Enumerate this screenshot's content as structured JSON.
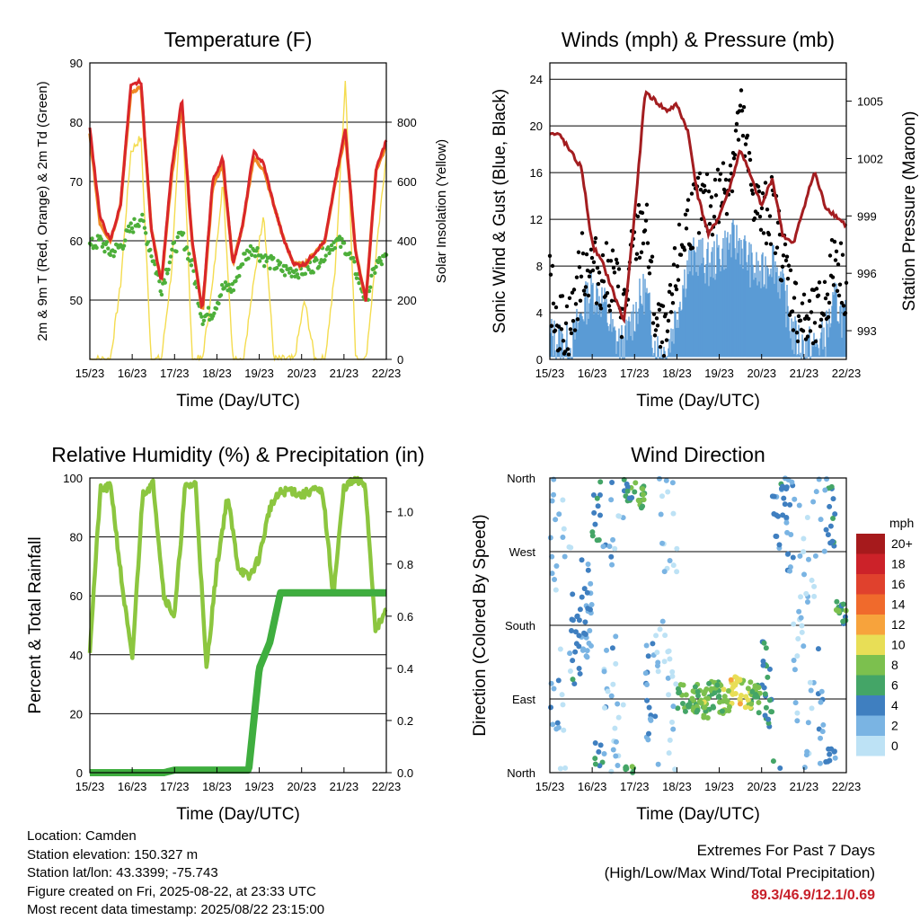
{
  "colors": {
    "temp2m": "#d9262a",
    "temp9m": "#f08a24",
    "dewpoint": "#4daf3a",
    "solar": "#f4dc4f",
    "wind": "#5a9bd5",
    "gust": "#000000",
    "pressure": "#a31d20",
    "rh": "#8cc63f",
    "precip": "#3fae3f",
    "extremes": "#c8202a"
  },
  "charts": {
    "temperature": {
      "title": "Temperature (F)",
      "xlabel": "Time (Day/UTC)",
      "ylabel": "2m & 9m T (Red, Orange) & 2m Td (Green)",
      "y2label": "Solar Insolation (Yellow)",
      "xticks": [
        "15/23",
        "16/23",
        "17/23",
        "18/23",
        "19/23",
        "20/23",
        "21/23",
        "22/23"
      ],
      "yticks": [
        "50",
        "60",
        "70",
        "80",
        "90"
      ],
      "y2ticks": [
        "0",
        "200",
        "400",
        "600",
        "800"
      ]
    },
    "winds": {
      "title": "Winds (mph) & Pressure (mb)",
      "xlabel": "Time (Day/UTC)",
      "ylabel": "Sonic Wind & Gust (Blue, Black)",
      "y2label": "Station Pressure (Maroon)",
      "xticks": [
        "15/23",
        "16/23",
        "17/23",
        "18/23",
        "19/23",
        "20/23",
        "21/23",
        "22/23"
      ],
      "yticks": [
        "0",
        "4",
        "8",
        "12",
        "16",
        "20",
        "24"
      ],
      "y2ticks": [
        "993",
        "996",
        "999",
        "1002",
        "1005"
      ]
    },
    "humidity": {
      "title": "Relative Humidity (%) & Precipitation (in)",
      "xlabel": "Time (Day/UTC)",
      "ylabel": "Percent & Total Rainfall",
      "xticks": [
        "15/23",
        "16/23",
        "17/23",
        "18/23",
        "19/23",
        "20/23",
        "21/23",
        "22/23"
      ],
      "yticks": [
        "0",
        "20",
        "40",
        "60",
        "80",
        "100"
      ],
      "y2ticks": [
        "0.0",
        "0.2",
        "0.4",
        "0.6",
        "0.8",
        "1.0"
      ]
    },
    "direction": {
      "title": "Wind Direction",
      "xlabel": "Time (Day/UTC)",
      "ylabel": "Direction (Colored By Speed)",
      "xticks": [
        "15/23",
        "16/23",
        "17/23",
        "18/23",
        "19/23",
        "20/23",
        "21/23",
        "22/23"
      ],
      "yticks": [
        "North",
        "East",
        "South",
        "West",
        "North"
      ],
      "legend_title": "mph",
      "legend_labels": [
        "20+",
        "18",
        "16",
        "14",
        "12",
        "10",
        "8",
        "6",
        "4",
        "2",
        "0"
      ],
      "legend_colors": [
        "#a61a1c",
        "#cc2229",
        "#e0412d",
        "#f06a2c",
        "#f7a33c",
        "#e8de56",
        "#7cc04e",
        "#44a567",
        "#3f7fc0",
        "#7ab4e3",
        "#bde2f5"
      ]
    }
  },
  "chart_data": [
    {
      "type": "line",
      "title": "Temperature (F)",
      "xlabel": "Time (Day/UTC)",
      "ylabel": "2m & 9m T (Red, Orange) & 2m Td (Green)",
      "y2label": "Solar Insolation (Yellow)",
      "x": [
        "15/23",
        "16/00",
        "16/06",
        "16/12",
        "16/18",
        "16/23",
        "17/06",
        "17/12",
        "17/18",
        "17/23",
        "18/06",
        "18/12",
        "18/18",
        "18/23",
        "19/06",
        "19/12",
        "19/18",
        "19/23",
        "20/06",
        "20/12",
        "20/18",
        "20/23",
        "21/06",
        "21/12",
        "21/18",
        "21/23",
        "22/06",
        "22/12",
        "22/18",
        "22/23"
      ],
      "ylim": [
        40,
        90
      ],
      "y2lim": [
        0,
        1000
      ],
      "series": [
        {
          "values": [
            79,
            64,
            60,
            66,
            86,
            87,
            62,
            53,
            72,
            84,
            60,
            48,
            70,
            74,
            56,
            63,
            75,
            73,
            66,
            60,
            56,
            56,
            58,
            60,
            70,
            79,
            58,
            50,
            72,
            77
          ]
        },
        {
          "values": [
            78,
            63,
            60,
            66,
            85,
            86,
            62,
            53,
            71,
            83,
            60,
            48,
            69,
            73,
            56,
            63,
            74,
            72,
            66,
            60,
            56,
            56,
            58,
            60,
            70,
            78,
            58,
            50,
            72,
            76
          ]
        },
        {
          "values": [
            59,
            60,
            58,
            59,
            62,
            64,
            58,
            52,
            58,
            61,
            56,
            47,
            48,
            52,
            52,
            57,
            59,
            57,
            56,
            55,
            55,
            55,
            56,
            58,
            60,
            59,
            55,
            50,
            56,
            57
          ]
        },
        {
          "values": [
            0,
            0,
            0,
            250,
            700,
            750,
            0,
            0,
            300,
            900,
            0,
            0,
            250,
            600,
            0,
            0,
            250,
            500,
            0,
            0,
            0,
            200,
            0,
            0,
            300,
            950,
            0,
            0,
            350,
            700
          ]
        }
      ]
    },
    {
      "type": "line",
      "title": "Winds (mph) & Pressure (mb)",
      "xlabel": "Time (Day/UTC)",
      "ylabel": "Sonic Wind & Gust (Blue, Black)",
      "y2label": "Station Pressure (Maroon)",
      "x": [
        "15/23",
        "16/06",
        "16/12",
        "16/18",
        "17/00",
        "17/06",
        "17/12",
        "17/18",
        "18/00",
        "18/06",
        "18/12",
        "18/18",
        "19/00",
        "19/06",
        "19/12",
        "19/18",
        "20/00",
        "20/06",
        "20/12",
        "20/18",
        "21/00",
        "21/06",
        "21/12",
        "21/18",
        "22/00",
        "22/06",
        "22/12",
        "22/18",
        "22/23"
      ],
      "ylim": [
        0,
        25.4
      ],
      "y2lim": [
        991.5,
        1007
      ],
      "series": [
        {
          "values": [
            2,
            1.5,
            1,
            4,
            6,
            5,
            2,
            1,
            4,
            6,
            1,
            0.5,
            4,
            8,
            9,
            8,
            9,
            10,
            10,
            8,
            7,
            9,
            6,
            2,
            1,
            1,
            2,
            5,
            3
          ]
        },
        {
          "values": [
            6,
            3,
            3,
            8,
            8,
            7,
            7,
            4,
            10,
            12,
            3,
            1,
            8,
            12,
            13,
            13,
            14,
            16,
            21,
            15,
            12,
            13,
            9,
            5,
            3,
            3,
            5,
            9,
            6
          ]
        },
        {
          "values": [
            1003.3,
            1003.2,
            1002.3,
            1001.5,
            997.5,
            996.5,
            995,
            993.5,
            999,
            1005.5,
            1005,
            1004.5,
            1004.8,
            1003.5,
            1000,
            998,
            999,
            1000.5,
            1002.5,
            1001,
            999.5,
            1001,
            998,
            997.5,
            999.5,
            1001.3,
            999.5,
            999,
            998.5
          ]
        }
      ]
    },
    {
      "type": "line",
      "title": "Relative Humidity (%) & Precipitation (in)",
      "xlabel": "Time (Day/UTC)",
      "ylabel": "Percent & Total Rainfall",
      "x": [
        "15/23",
        "16/06",
        "16/12",
        "16/18",
        "16/23",
        "17/06",
        "17/12",
        "17/18",
        "17/23",
        "18/06",
        "18/12",
        "18/18",
        "18/23",
        "19/06",
        "19/12",
        "19/18",
        "19/23",
        "20/06",
        "20/12",
        "20/18",
        "20/23",
        "21/06",
        "21/12",
        "21/18",
        "21/23",
        "22/06",
        "22/12",
        "22/18",
        "22/23"
      ],
      "ylim": [
        0,
        100
      ],
      "y2lim": [
        0,
        1.13
      ],
      "series": [
        {
          "values": [
            42,
            96,
            97,
            65,
            38,
            95,
            98,
            60,
            53,
            97,
            98,
            35,
            70,
            94,
            70,
            66,
            73,
            90,
            95,
            96,
            94,
            96,
            95,
            60,
            97,
            99,
            98,
            48,
            55
          ]
        },
        {
          "values": [
            0,
            0,
            0,
            0,
            0,
            0,
            0,
            0,
            0.01,
            0.01,
            0.01,
            0.01,
            0.01,
            0.01,
            0.01,
            0.01,
            0.4,
            0.5,
            0.69,
            0.69,
            0.69,
            0.69,
            0.69,
            0.69,
            0.69,
            0.69,
            0.69,
            0.69,
            0.69
          ]
        }
      ]
    },
    {
      "type": "scatter",
      "title": "Wind Direction",
      "xlabel": "Time (Day/UTC)",
      "ylabel": "Direction (Colored By Speed)",
      "x": [
        "16/00",
        "16/06",
        "16/12",
        "16/18",
        "17/00",
        "17/06",
        "17/12",
        "17/18",
        "18/00",
        "18/06",
        "18/12",
        "18/18",
        "19/00",
        "19/06",
        "19/12",
        "19/18",
        "20/00",
        "20/06",
        "20/12",
        "20/18",
        "21/00",
        "21/06",
        "21/12",
        "21/18",
        "22/00",
        "22/06",
        "22/12",
        "22/18"
      ],
      "y_categories": [
        "North",
        "East",
        "South",
        "West",
        "North"
      ],
      "series": [
        {
          "values": [
            345,
            20,
            160,
            200,
            340,
            20,
            30,
            350,
            340,
            100,
            250,
            10,
            90,
            90,
            85,
            95,
            90,
            100,
            95,
            90,
            110,
            320,
            300,
            200,
            340,
            30,
            330,
            200
          ]
        },
        {
          "values": [
            2,
            1,
            4,
            3,
            5,
            2,
            1,
            6,
            7,
            3,
            1,
            0,
            7,
            7,
            8,
            7,
            8,
            10,
            9,
            7,
            5,
            4,
            3,
            1,
            1,
            2,
            4,
            6
          ]
        }
      ]
    }
  ],
  "footer": {
    "location": "Location: Camden",
    "elevation": "Station elevation: 150.327 m",
    "latlon": "Station lat/lon: 43.3399; -75.743",
    "created": "Figure created on Fri, 2025-08-22, at 23:33 UTC",
    "recent": "Most recent data timestamp: 2025/08/22 23:15:00",
    "extremes_title": "Extremes For Past 7 Days",
    "extremes_sub": "(High/Low/Max Wind/Total Precipitation)",
    "extremes_values": "89.3/46.9/12.1/0.69"
  }
}
